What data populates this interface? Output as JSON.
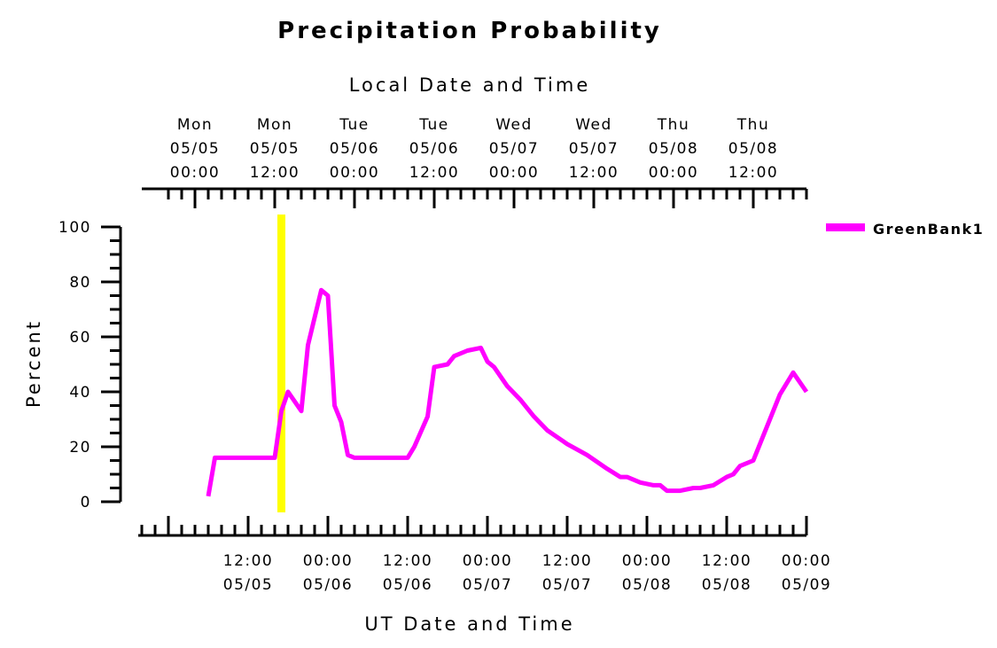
{
  "chart_data": {
    "type": "line",
    "title": "Precipitation Probability",
    "top_axis_label": "Local Date and Time",
    "xlabel": "UT Date and Time",
    "ylabel": "Percent",
    "ylim": [
      0,
      100
    ],
    "y_ticks": [
      "0",
      "20",
      "40",
      "60",
      "80",
      "100"
    ],
    "top_ticks": [
      {
        "day": "Mon",
        "date": "05/05",
        "time": "00:00"
      },
      {
        "day": "Mon",
        "date": "05/05",
        "time": "12:00"
      },
      {
        "day": "Tue",
        "date": "05/06",
        "time": "00:00"
      },
      {
        "day": "Tue",
        "date": "05/06",
        "time": "12:00"
      },
      {
        "day": "Wed",
        "date": "05/07",
        "time": "00:00"
      },
      {
        "day": "Wed",
        "date": "05/07",
        "time": "12:00"
      },
      {
        "day": "Thu",
        "date": "05/08",
        "time": "00:00"
      },
      {
        "day": "Thu",
        "date": "05/08",
        "time": "12:00"
      }
    ],
    "bottom_ticks": [
      {
        "time": "12:00",
        "date": "05/05"
      },
      {
        "time": "00:00",
        "date": "05/06"
      },
      {
        "time": "12:00",
        "date": "05/06"
      },
      {
        "time": "00:00",
        "date": "05/07"
      },
      {
        "time": "12:00",
        "date": "05/07"
      },
      {
        "time": "00:00",
        "date": "05/08"
      },
      {
        "time": "12:00",
        "date": "05/08"
      },
      {
        "time": "00:00",
        "date": "05/09"
      }
    ],
    "current_time_marker": "05/05 17:00",
    "series": [
      {
        "name": "GreenBank1",
        "color": "#ff00ff",
        "x": [
          "05/05 06:00",
          "05/05 07:00",
          "05/05 08:00",
          "05/05 16:00",
          "05/05 17:00",
          "05/05 18:00",
          "05/05 20:00",
          "05/05 21:00",
          "05/05 23:00",
          "05/06 00:00",
          "05/06 01:00",
          "05/06 02:00",
          "05/06 03:00",
          "05/06 04:00",
          "05/06 05:00",
          "05/06 12:00",
          "05/06 13:00",
          "05/06 15:00",
          "05/06 16:00",
          "05/06 18:00",
          "05/06 19:00",
          "05/06 21:00",
          "05/06 23:00",
          "05/07 00:00",
          "05/07 01:00",
          "05/07 03:00",
          "05/07 05:00",
          "05/07 07:00",
          "05/07 09:00",
          "05/07 12:00",
          "05/07 15:00",
          "05/07 18:00",
          "05/07 20:00",
          "05/07 21:00",
          "05/07 23:00",
          "05/08 01:00",
          "05/08 02:00",
          "05/08 03:00",
          "05/08 05:00",
          "05/08 07:00",
          "05/08 08:00",
          "05/08 10:00",
          "05/08 12:00",
          "05/08 13:00",
          "05/08 14:00",
          "05/08 16:00",
          "05/08 18:00",
          "05/08 20:00",
          "05/08 22:00",
          "05/09 00:00"
        ],
        "y": [
          2,
          16,
          16,
          16,
          33,
          40,
          33,
          57,
          77,
          75,
          35,
          29,
          17,
          16,
          16,
          16,
          20,
          31,
          49,
          50,
          53,
          55,
          56,
          51,
          49,
          42,
          37,
          31,
          26,
          21,
          17,
          12,
          9,
          9,
          7,
          6,
          6,
          4,
          4,
          5,
          5,
          6,
          9,
          10,
          13,
          15,
          27,
          39,
          47,
          40
        ]
      }
    ],
    "legend": {
      "position": "top-right",
      "entries": [
        "GreenBank1"
      ]
    },
    "grid": false
  }
}
